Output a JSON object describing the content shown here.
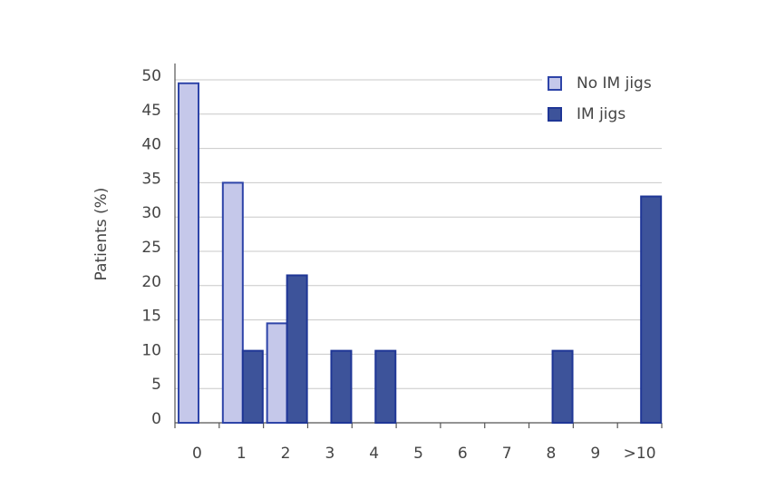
{
  "chart_data": {
    "type": "bar",
    "y_label": "Patients (%)",
    "categories": [
      "0",
      "1",
      "2",
      "3",
      "4",
      "5",
      "6",
      "7",
      "8",
      "9",
      ">10"
    ],
    "series": [
      {
        "name": "No IM jigs",
        "color": "#c5c8ea",
        "edge": "#2e44a8",
        "values": [
          49.5,
          35,
          14.5,
          0,
          0,
          0,
          0,
          0,
          0,
          0,
          0
        ]
      },
      {
        "name": "IM jigs",
        "color": "#3d539a",
        "edge": "#1f3696",
        "values": [
          0,
          10.5,
          21.5,
          10.5,
          10.5,
          0,
          0,
          0,
          10.5,
          0,
          33
        ]
      }
    ],
    "ylim": [
      0,
      50
    ],
    "yticks": [
      0,
      5,
      10,
      15,
      20,
      25,
      30,
      35,
      40,
      45,
      50
    ],
    "grid": true,
    "legend": "upper right"
  }
}
